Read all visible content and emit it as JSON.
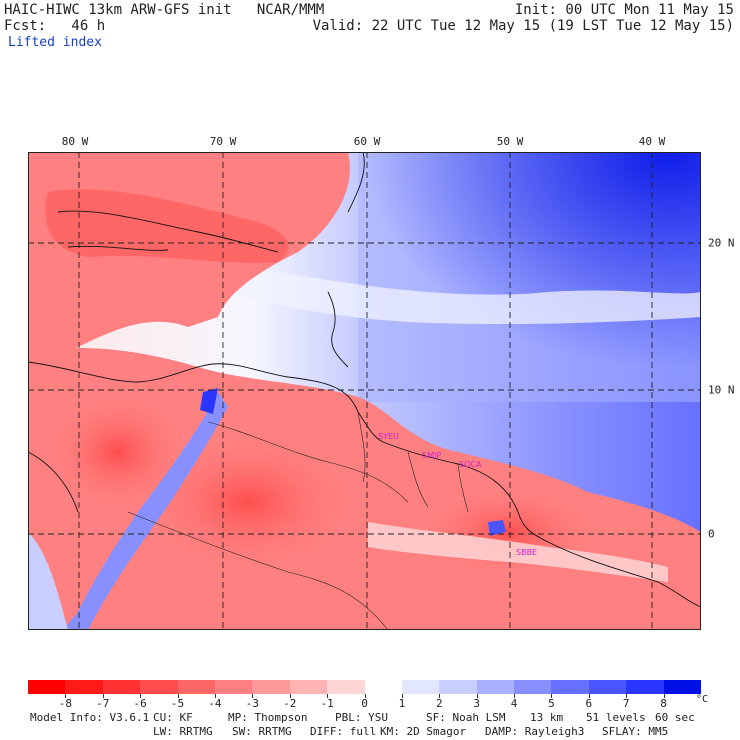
{
  "header": {
    "line1_left": "HAIC-HIWC 13km ARW-GFS init   NCAR/MMM",
    "line1_right": "Init: 00 UTC Mon 11 May 15",
    "line2_left": "Fcst:   46 h",
    "line2_right": "Valid: 22 UTC Tue 12 May 15 (19 LST Tue 12 May 15)",
    "field_name": "Lifted index"
  },
  "map": {
    "longitude_labels": [
      "80 W",
      "70 W",
      "60 W",
      "50 W",
      "40 W"
    ],
    "latitude_labels": [
      "20 N",
      "10 N",
      "0"
    ],
    "stations": [
      "SYEU",
      "SMJP",
      "SOCA",
      "SBBE"
    ]
  },
  "colorbar": {
    "labels": [
      "-8",
      "-7",
      "-6",
      "-5",
      "-4",
      "-3",
      "-2",
      "-1",
      "0",
      "1",
      "2",
      "3",
      "4",
      "5",
      "6",
      "7",
      "8"
    ],
    "unit": "°C",
    "colors": [
      "#ff0000",
      "#ff1a1a",
      "#ff3333",
      "#ff4d4d",
      "#ff6666",
      "#ff8080",
      "#ff9999",
      "#ffb3b3",
      "#ffd5d5",
      "#ffffff",
      "#e2e6ff",
      "#c8cfff",
      "#a8b0ff",
      "#8890ff",
      "#6870ff",
      "#4a55ff",
      "#2a35ff",
      "#0010e6"
    ]
  },
  "footer": {
    "line1": [
      "Model Info: V3.6.1",
      "CU: KF",
      "MP: Thompson",
      "PBL: YSU",
      "SF: Noah LSM",
      "13 km",
      "51 levels",
      "60 sec"
    ],
    "line2": [
      "LW: RRTMG",
      "SW: RRTMG",
      "DIFF: full",
      "KM: 2D Smagor",
      "DAMP: Rayleigh3",
      "SFLAY: MM5"
    ]
  }
}
